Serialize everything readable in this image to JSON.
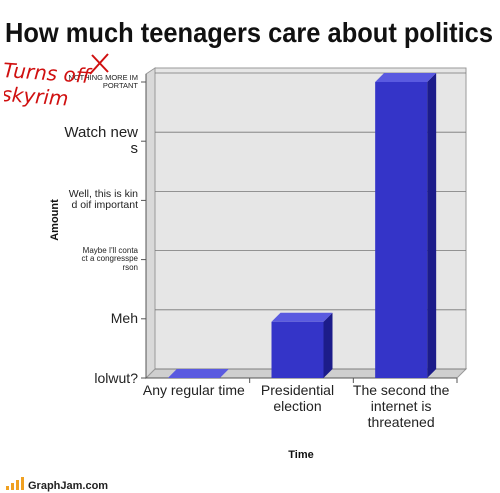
{
  "chart_data": {
    "type": "bar",
    "title": "How much teenagers care about politics",
    "categories": [
      "Any regular time",
      "Presidential election",
      "The second the internet is threatened"
    ],
    "values": [
      0,
      0.95,
      5
    ],
    "color": "#3434c8",
    "ylim": [
      0,
      5
    ],
    "yticks": [
      {
        "value": 0,
        "label": "lolwut?"
      },
      {
        "value": 1,
        "label": "Meh"
      },
      {
        "value": 2,
        "label": "Maybe I'll contact a congressperson"
      },
      {
        "value": 3,
        "label": "Well, this is kind oif important"
      },
      {
        "value": 4,
        "label": "Watch news"
      },
      {
        "value": 5,
        "label": "NOTHING MORE IMPORTANT"
      }
    ],
    "xlabel": "Time",
    "ylabel": "Amount",
    "grid": true,
    "annotation": "Turns off skyrim"
  },
  "footer": "GraphJam.com"
}
